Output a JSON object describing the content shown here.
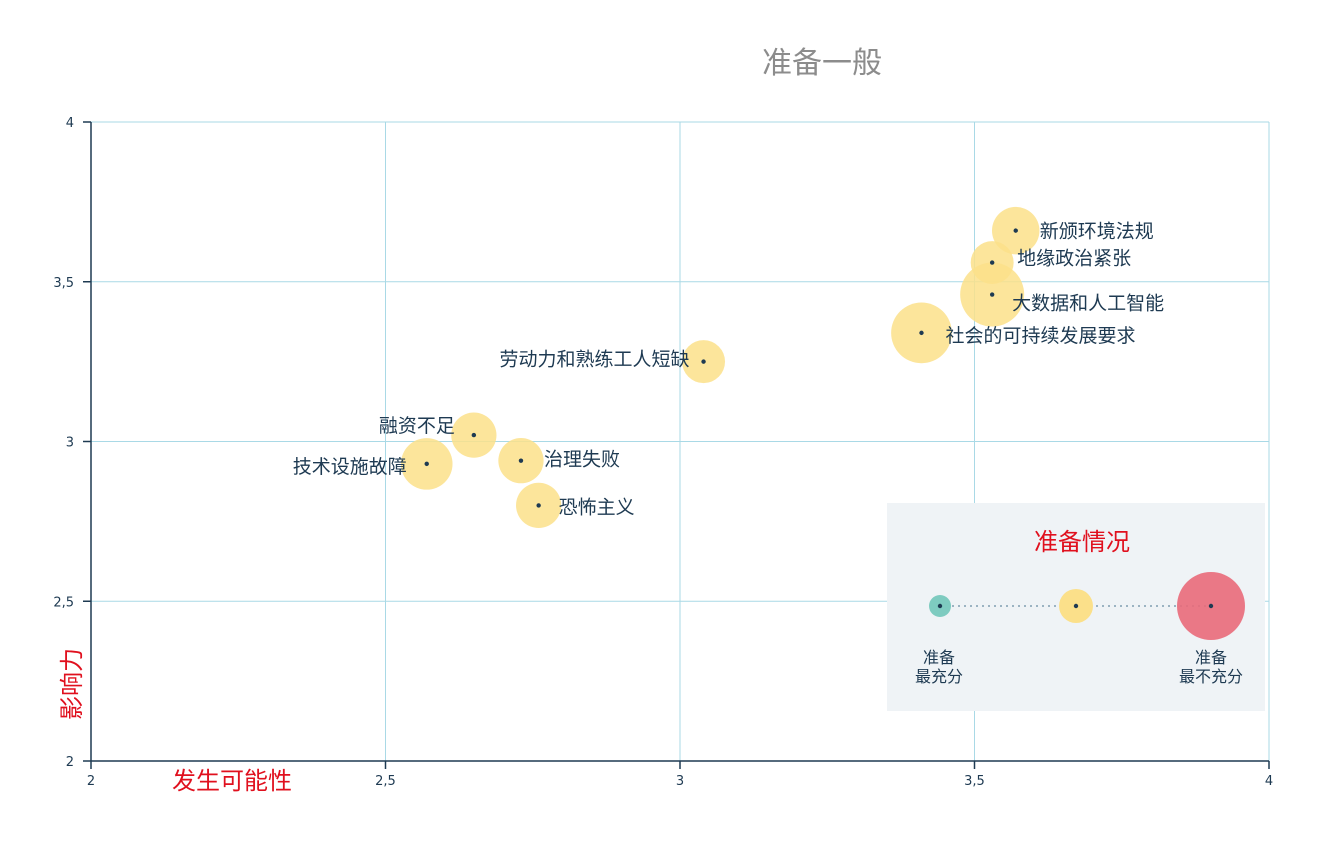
{
  "chart_data": {
    "type": "scatter",
    "title": "准备一般",
    "xlabel": "发生可能性",
    "ylabel": "影响力",
    "xlim": [
      2,
      4
    ],
    "ylim": [
      2,
      4
    ],
    "x_ticks": [
      "2",
      "2,5",
      "3",
      "3,5",
      "4"
    ],
    "y_ticks": [
      "2",
      "2,5",
      "3",
      "3,5",
      "4"
    ],
    "grid": true,
    "points": [
      {
        "label": "新颁环境法规",
        "x": 3.57,
        "y": 3.66,
        "size": 0.55
      },
      {
        "label": "地缘政治紧张",
        "x": 3.53,
        "y": 3.56,
        "size": 0.45
      },
      {
        "label": "大数据和人工智能",
        "x": 3.53,
        "y": 3.46,
        "size": 1.0
      },
      {
        "label": "社会的可持续发展要求",
        "x": 3.41,
        "y": 3.34,
        "size": 0.9
      },
      {
        "label": "劳动力和熟练工人短缺",
        "x": 3.04,
        "y": 3.25,
        "size": 0.45
      },
      {
        "label": "融资不足",
        "x": 2.65,
        "y": 3.02,
        "size": 0.5
      },
      {
        "label": "技术设施故障",
        "x": 2.57,
        "y": 2.93,
        "size": 0.65
      },
      {
        "label": "治理失败",
        "x": 2.73,
        "y": 2.94,
        "size": 0.5
      },
      {
        "label": "恐怖主义",
        "x": 2.76,
        "y": 2.8,
        "size": 0.5
      }
    ],
    "legend": {
      "title": "准备情况",
      "position": "bottom-right",
      "low_label_1": "准备",
      "low_label_2": "最充分",
      "high_label_1": "准备",
      "high_label_2": "最不充分",
      "colors": [
        "#7ecbc0",
        "#fbe08a",
        "#e96a7a"
      ]
    },
    "colors": {
      "bubble": "#fbe08a",
      "dot": "#1e3a52",
      "grid": "#a9d9e6",
      "axis": "#1e3a52",
      "accent": "#e0101e"
    }
  }
}
